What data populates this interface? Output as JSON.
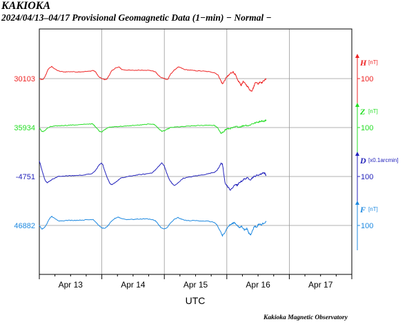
{
  "header": {
    "station": "KAKIOKA",
    "subtitle": "2024/04/13–04/17  Provisional Geomagnetic Data (1−min)  − Normal −"
  },
  "footer": {
    "credit": "Kakioka Magnetic Observatory"
  },
  "chart_data": {
    "type": "line",
    "title": "KAKIOKA",
    "xlabel": "UTC",
    "x_ticks": [
      "Apr 13",
      "Apr 14",
      "Apr 15",
      "Apr 16",
      "Apr 17"
    ],
    "x_range": [
      "2024-04-13T00:00",
      "2024-04-18T00:00"
    ],
    "grid": true,
    "series": [
      {
        "name": "H",
        "unit": "[nT]",
        "color": "#ee2222",
        "baseline_label": "30103",
        "scale_label": "100",
        "scale_value": 100,
        "points": [
          [
            0.0,
            0
          ],
          [
            0.03,
            -3
          ],
          [
            0.06,
            -3
          ],
          [
            0.1,
            10
          ],
          [
            0.14,
            31
          ],
          [
            0.2,
            40
          ],
          [
            0.26,
            30
          ],
          [
            0.32,
            24
          ],
          [
            0.4,
            22
          ],
          [
            0.5,
            23
          ],
          [
            0.6,
            22
          ],
          [
            0.7,
            23
          ],
          [
            0.8,
            24
          ],
          [
            0.86,
            27
          ],
          [
            0.9,
            22
          ],
          [
            0.95,
            6
          ],
          [
            1.0,
            0
          ],
          [
            1.04,
            -3
          ],
          [
            1.08,
            -2
          ],
          [
            1.12,
            12
          ],
          [
            1.16,
            26
          ],
          [
            1.22,
            35
          ],
          [
            1.28,
            38
          ],
          [
            1.32,
            30
          ],
          [
            1.4,
            28
          ],
          [
            1.5,
            27
          ],
          [
            1.6,
            28
          ],
          [
            1.7,
            28
          ],
          [
            1.8,
            26
          ],
          [
            1.86,
            22
          ],
          [
            1.9,
            12
          ],
          [
            1.95,
            3
          ],
          [
            2.0,
            1
          ],
          [
            2.03,
            -3
          ],
          [
            2.06,
            -2
          ],
          [
            2.1,
            15
          ],
          [
            2.16,
            28
          ],
          [
            2.22,
            38
          ],
          [
            2.26,
            36
          ],
          [
            2.32,
            30
          ],
          [
            2.4,
            28
          ],
          [
            2.5,
            26
          ],
          [
            2.6,
            25
          ],
          [
            2.7,
            23
          ],
          [
            2.8,
            20
          ],
          [
            2.86,
            12
          ],
          [
            2.9,
            -5
          ],
          [
            2.93,
            -18
          ],
          [
            2.96,
            -8
          ],
          [
            3.0,
            6
          ],
          [
            3.03,
            10
          ],
          [
            3.06,
            18
          ],
          [
            3.1,
            22
          ],
          [
            3.14,
            12
          ],
          [
            3.17,
            -5
          ],
          [
            3.2,
            -12
          ],
          [
            3.23,
            -22
          ],
          [
            3.26,
            -10
          ],
          [
            3.3,
            -18
          ],
          [
            3.34,
            -28
          ],
          [
            3.37,
            -38
          ],
          [
            3.4,
            -40
          ],
          [
            3.43,
            -28
          ],
          [
            3.46,
            -10
          ],
          [
            3.5,
            -18
          ],
          [
            3.53,
            -10
          ],
          [
            3.56,
            -14
          ],
          [
            3.6,
            -5
          ],
          [
            3.63,
            -2
          ]
        ]
      },
      {
        "name": "Z",
        "unit": "[nT]",
        "color": "#22dd22",
        "baseline_label": "35934",
        "scale_label": "100",
        "scale_value": 100,
        "points": [
          [
            0.0,
            0
          ],
          [
            0.04,
            -13
          ],
          [
            0.08,
            -12
          ],
          [
            0.12,
            -3
          ],
          [
            0.18,
            3
          ],
          [
            0.25,
            5
          ],
          [
            0.32,
            6
          ],
          [
            0.4,
            7
          ],
          [
            0.5,
            8
          ],
          [
            0.6,
            9
          ],
          [
            0.7,
            10
          ],
          [
            0.8,
            12
          ],
          [
            0.85,
            12
          ],
          [
            0.88,
            7
          ],
          [
            0.92,
            -2
          ],
          [
            0.96,
            -12
          ],
          [
            1.0,
            -14
          ],
          [
            1.04,
            -8
          ],
          [
            1.1,
            0
          ],
          [
            1.2,
            3
          ],
          [
            1.3,
            4
          ],
          [
            1.4,
            5
          ],
          [
            1.5,
            7
          ],
          [
            1.6,
            8
          ],
          [
            1.7,
            10
          ],
          [
            1.78,
            12
          ],
          [
            1.84,
            10
          ],
          [
            1.88,
            3
          ],
          [
            1.92,
            -6
          ],
          [
            1.96,
            -12
          ],
          [
            2.0,
            -11
          ],
          [
            2.05,
            -5
          ],
          [
            2.1,
            0
          ],
          [
            2.2,
            2
          ],
          [
            2.3,
            3
          ],
          [
            2.4,
            5
          ],
          [
            2.5,
            6
          ],
          [
            2.6,
            7
          ],
          [
            2.7,
            8
          ],
          [
            2.8,
            7
          ],
          [
            2.85,
            0
          ],
          [
            2.88,
            -10
          ],
          [
            2.91,
            -20
          ],
          [
            2.94,
            -16
          ],
          [
            2.97,
            -8
          ],
          [
            3.0,
            -5
          ],
          [
            3.05,
            -3
          ],
          [
            3.1,
            -1
          ],
          [
            3.15,
            3
          ],
          [
            3.2,
            2
          ],
          [
            3.25,
            5
          ],
          [
            3.3,
            8
          ],
          [
            3.35,
            6
          ],
          [
            3.4,
            12
          ],
          [
            3.45,
            15
          ],
          [
            3.5,
            18
          ],
          [
            3.55,
            22
          ],
          [
            3.6,
            21
          ],
          [
            3.63,
            25
          ]
        ]
      },
      {
        "name": "D",
        "unit": "[x0.1arcmin]",
        "color": "#2222bb",
        "baseline_label": "-4751",
        "scale_label": "100",
        "scale_value": 100,
        "points": [
          [
            0.0,
            52
          ],
          [
            0.02,
            38
          ],
          [
            0.05,
            15
          ],
          [
            0.08,
            -5
          ],
          [
            0.1,
            -15
          ],
          [
            0.13,
            -20
          ],
          [
            0.16,
            -16
          ],
          [
            0.2,
            -10
          ],
          [
            0.25,
            -5
          ],
          [
            0.3,
            0
          ],
          [
            0.35,
            1
          ],
          [
            0.45,
            2
          ],
          [
            0.55,
            3
          ],
          [
            0.65,
            4
          ],
          [
            0.75,
            6
          ],
          [
            0.85,
            10
          ],
          [
            0.9,
            20
          ],
          [
            0.95,
            36
          ],
          [
            0.99,
            45
          ],
          [
            1.02,
            37
          ],
          [
            1.04,
            23
          ],
          [
            1.07,
            5
          ],
          [
            1.1,
            -10
          ],
          [
            1.13,
            -23
          ],
          [
            1.16,
            -28
          ],
          [
            1.2,
            -22
          ],
          [
            1.25,
            -14
          ],
          [
            1.3,
            -6
          ],
          [
            1.4,
            -1
          ],
          [
            1.5,
            3
          ],
          [
            1.6,
            6
          ],
          [
            1.7,
            8
          ],
          [
            1.8,
            12
          ],
          [
            1.86,
            22
          ],
          [
            1.92,
            36
          ],
          [
            1.96,
            45
          ],
          [
            2.0,
            35
          ],
          [
            2.02,
            22
          ],
          [
            2.05,
            5
          ],
          [
            2.08,
            -10
          ],
          [
            2.12,
            -22
          ],
          [
            2.16,
            -30
          ],
          [
            2.2,
            -25
          ],
          [
            2.25,
            -15
          ],
          [
            2.3,
            -6
          ],
          [
            2.4,
            -2
          ],
          [
            2.5,
            2
          ],
          [
            2.6,
            5
          ],
          [
            2.7,
            9
          ],
          [
            2.8,
            14
          ],
          [
            2.85,
            22
          ],
          [
            2.88,
            32
          ],
          [
            2.91,
            45
          ],
          [
            2.93,
            40
          ],
          [
            2.95,
            10
          ],
          [
            2.97,
            -20
          ],
          [
            3.0,
            -30
          ],
          [
            3.03,
            -38
          ],
          [
            3.06,
            -45
          ],
          [
            3.1,
            -35
          ],
          [
            3.14,
            -25
          ],
          [
            3.17,
            -30
          ],
          [
            3.2,
            -20
          ],
          [
            3.24,
            -15
          ],
          [
            3.28,
            -8
          ],
          [
            3.33,
            -5
          ],
          [
            3.38,
            -10
          ],
          [
            3.42,
            -2
          ],
          [
            3.46,
            2
          ],
          [
            3.5,
            5
          ],
          [
            3.55,
            8
          ],
          [
            3.58,
            13
          ],
          [
            3.61,
            10
          ],
          [
            3.63,
            3
          ]
        ]
      },
      {
        "name": "F",
        "unit": "[nT]",
        "color": "#1c88e0",
        "baseline_label": "46882",
        "scale_label": "100",
        "scale_value": 100,
        "points": [
          [
            0.0,
            0
          ],
          [
            0.04,
            -12
          ],
          [
            0.08,
            -8
          ],
          [
            0.12,
            5
          ],
          [
            0.16,
            22
          ],
          [
            0.2,
            30
          ],
          [
            0.25,
            22
          ],
          [
            0.32,
            15
          ],
          [
            0.4,
            16
          ],
          [
            0.5,
            17
          ],
          [
            0.6,
            17
          ],
          [
            0.7,
            18
          ],
          [
            0.8,
            19
          ],
          [
            0.86,
            20
          ],
          [
            0.9,
            12
          ],
          [
            0.95,
            0
          ],
          [
            1.0,
            -8
          ],
          [
            1.04,
            -10
          ],
          [
            1.08,
            -5
          ],
          [
            1.14,
            10
          ],
          [
            1.2,
            22
          ],
          [
            1.26,
            28
          ],
          [
            1.3,
            24
          ],
          [
            1.38,
            20
          ],
          [
            1.5,
            20
          ],
          [
            1.6,
            21
          ],
          [
            1.7,
            22
          ],
          [
            1.8,
            20
          ],
          [
            1.86,
            15
          ],
          [
            1.9,
            5
          ],
          [
            1.95,
            -8
          ],
          [
            2.0,
            -12
          ],
          [
            2.04,
            -8
          ],
          [
            2.1,
            8
          ],
          [
            2.16,
            20
          ],
          [
            2.22,
            26
          ],
          [
            2.28,
            20
          ],
          [
            2.36,
            16
          ],
          [
            2.5,
            16
          ],
          [
            2.6,
            15
          ],
          [
            2.7,
            14
          ],
          [
            2.8,
            10
          ],
          [
            2.84,
            2
          ],
          [
            2.87,
            -10
          ],
          [
            2.9,
            -20
          ],
          [
            2.93,
            -35
          ],
          [
            2.96,
            -25
          ],
          [
            3.0,
            -10
          ],
          [
            3.04,
            0
          ],
          [
            3.08,
            5
          ],
          [
            3.12,
            10
          ],
          [
            3.16,
            2
          ],
          [
            3.2,
            -8
          ],
          [
            3.24,
            -2
          ],
          [
            3.28,
            -15
          ],
          [
            3.32,
            -10
          ],
          [
            3.35,
            -25
          ],
          [
            3.38,
            -30
          ],
          [
            3.41,
            -18
          ],
          [
            3.44,
            -2
          ],
          [
            3.48,
            -6
          ],
          [
            3.51,
            5
          ],
          [
            3.55,
            2
          ],
          [
            3.59,
            8
          ],
          [
            3.63,
            12
          ]
        ]
      }
    ]
  }
}
